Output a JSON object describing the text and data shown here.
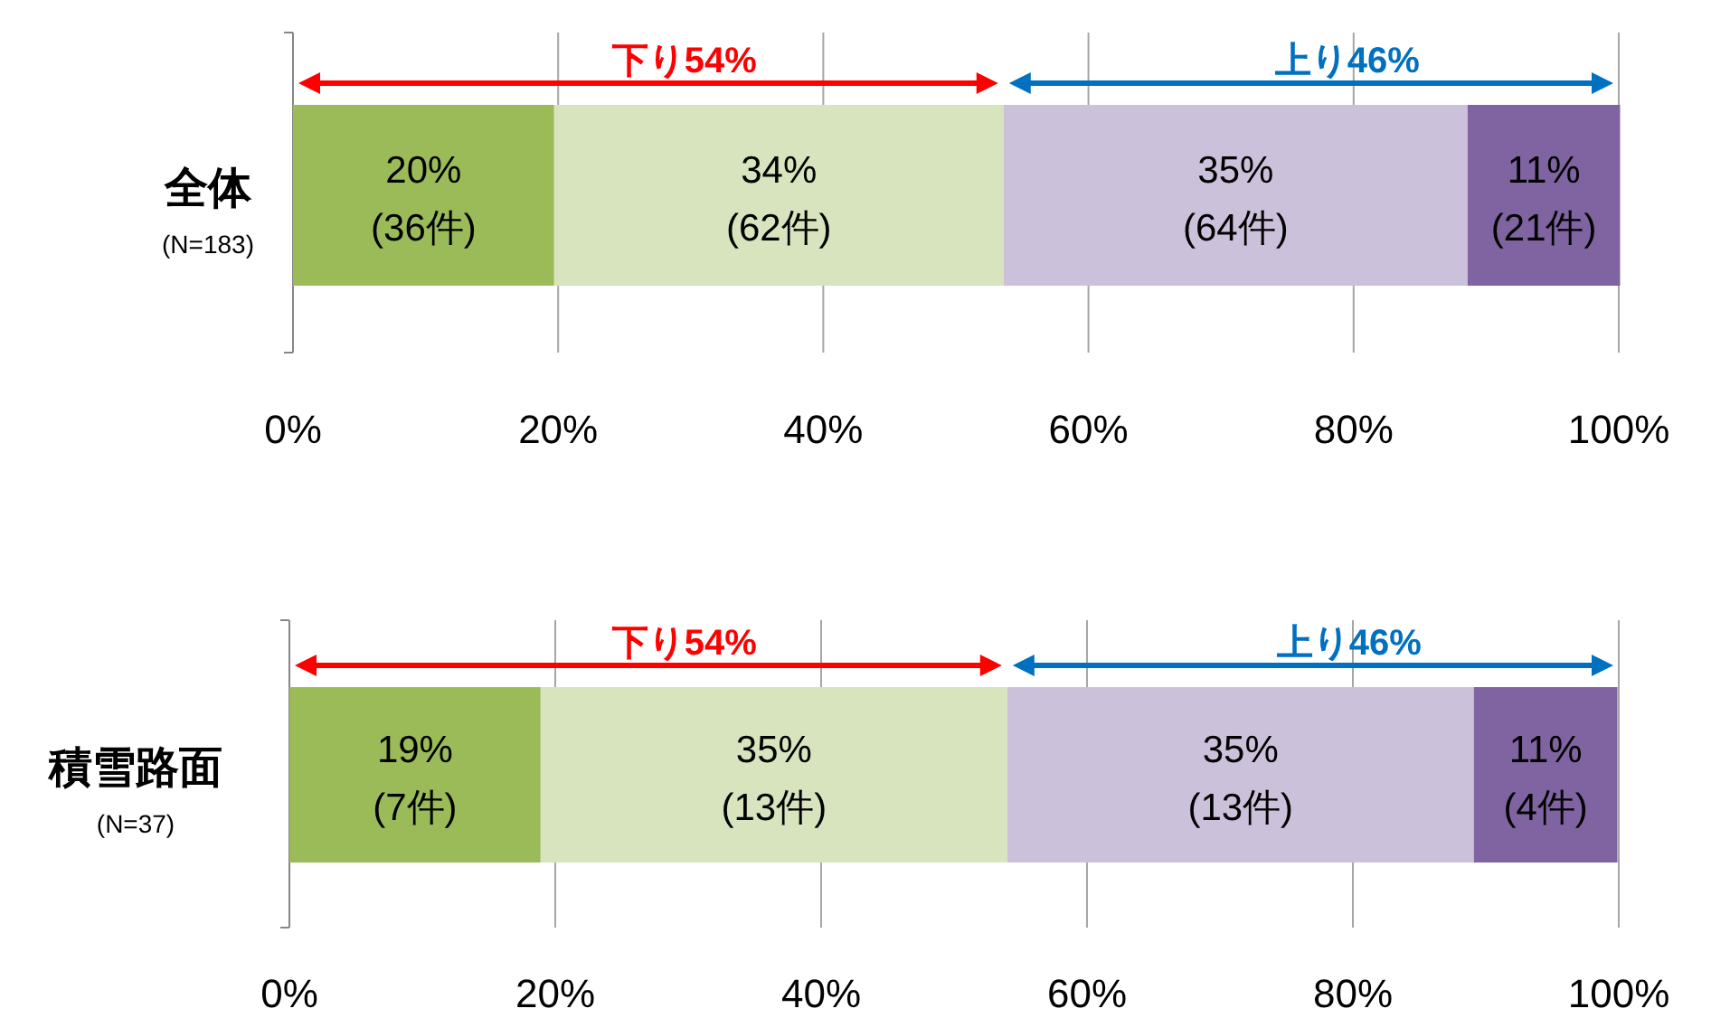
{
  "chart_data": [
    {
      "type": "bar",
      "orientation": "horizontal",
      "stacked": true,
      "categories": [
        "全体\n(N=183)"
      ],
      "series": [
        {
          "color": "#9bbb59",
          "values": [
            19.7
          ],
          "value_labels": [
            "20%\n(36件)"
          ]
        },
        {
          "color": "#d7e4bd",
          "values": [
            33.9
          ],
          "value_labels": [
            "34%\n(62件)"
          ]
        },
        {
          "color": "#ccc1da",
          "values": [
            35.0
          ],
          "value_labels": [
            "35%\n(64件)"
          ]
        },
        {
          "color": "#8064a2",
          "values": [
            11.5
          ],
          "value_labels": [
            "11%\n(21件)"
          ]
        }
      ],
      "xlim": [
        0,
        100
      ],
      "xticks": [
        {
          "value": 0,
          "label": "0%"
        },
        {
          "value": 20,
          "label": "20%"
        },
        {
          "value": 40,
          "label": "40%"
        },
        {
          "value": 60,
          "label": "60%"
        },
        {
          "value": 80,
          "label": "80%"
        },
        {
          "value": 100,
          "label": "100%"
        }
      ],
      "grid": "x",
      "annotations": [
        "下り54%",
        "上り46%"
      ]
    },
    {
      "type": "bar",
      "orientation": "horizontal",
      "stacked": true,
      "categories": [
        "積雪路面\n(N=37)"
      ],
      "series": [
        {
          "color": "#9bbb59",
          "values": [
            18.9
          ],
          "value_labels": [
            "19%\n(7件)"
          ]
        },
        {
          "color": "#d7e4bd",
          "values": [
            35.1
          ],
          "value_labels": [
            "35%\n(13件)"
          ]
        },
        {
          "color": "#ccc1da",
          "values": [
            35.1
          ],
          "value_labels": [
            "35%\n(13件)"
          ]
        },
        {
          "color": "#8064a2",
          "values": [
            10.8
          ],
          "value_labels": [
            "11%\n(4件)"
          ]
        }
      ],
      "xlim": [
        0,
        100
      ],
      "xticks": [
        {
          "value": 0,
          "label": "0%"
        },
        {
          "value": 20,
          "label": "20%"
        },
        {
          "value": 40,
          "label": "40%"
        },
        {
          "value": 60,
          "label": "60%"
        },
        {
          "value": 80,
          "label": "80%"
        },
        {
          "value": 100,
          "label": "100%"
        }
      ],
      "grid": "x",
      "annotations": [
        "下り54%",
        "上り46%"
      ]
    }
  ]
}
